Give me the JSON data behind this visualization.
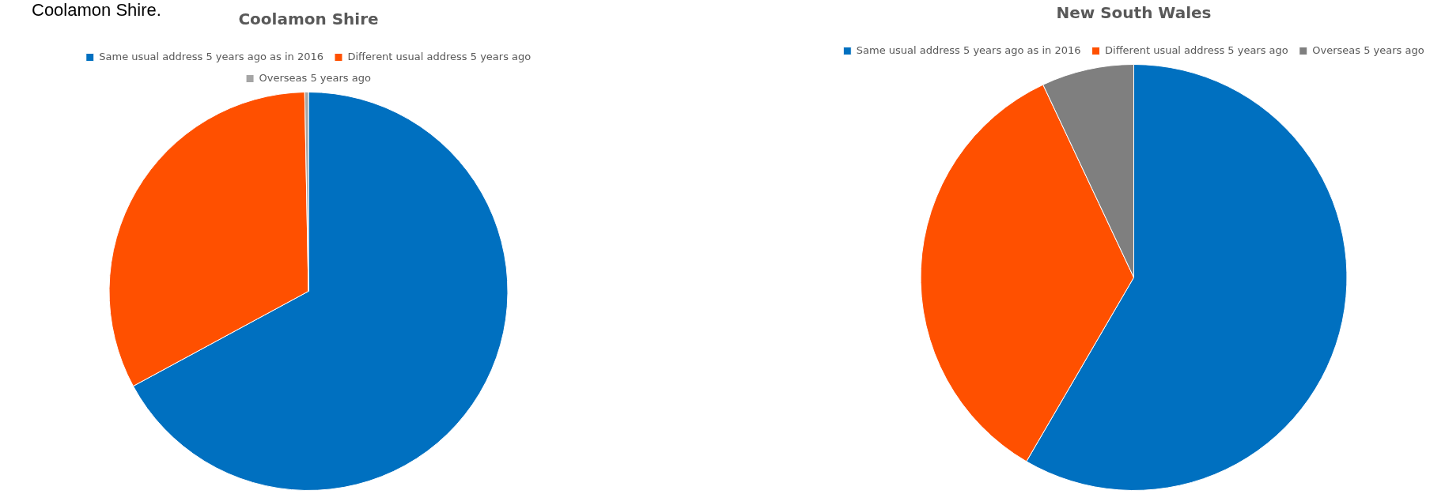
{
  "chart_data": [
    {
      "type": "pie",
      "title": "Coolamon Shire",
      "categories": [
        "Same usual address 5 years ago as in 2016",
        "Different usual address 5 years ago",
        "Overseas 5 years ago"
      ],
      "values": [
        67.1,
        32.6,
        0.3
      ],
      "colors": [
        "#0070c0",
        "#ff5000",
        "#a5a5a5"
      ],
      "legend": "top",
      "annotations": [
        "Coolamon Shire."
      ]
    },
    {
      "type": "pie",
      "title": "New South Wales",
      "categories": [
        "Same usual address 5 years ago as in 2016",
        "Different usual address 5 years ago",
        "Overseas 5 years ago"
      ],
      "values": [
        58.4,
        34.6,
        7.0
      ],
      "colors": [
        "#0070c0",
        "#ff5000",
        "#7f7f7f"
      ],
      "legend": "top"
    }
  ]
}
